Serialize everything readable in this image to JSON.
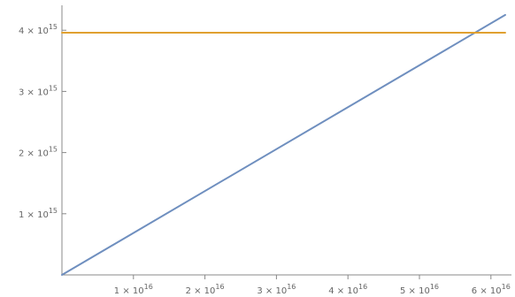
{
  "chart_data": {
    "type": "line",
    "title": "",
    "xlabel": "",
    "ylabel": "",
    "xlim": [
      0,
      6.25e+16
    ],
    "ylim": [
      0,
      4350000000000000.0
    ],
    "grid": false,
    "x_ticks": [
      {
        "value": 1e+16,
        "mant": "1",
        "exp": "16"
      },
      {
        "value": 2e+16,
        "mant": "2",
        "exp": "16"
      },
      {
        "value": 3e+16,
        "mant": "3",
        "exp": "16"
      },
      {
        "value": 4e+16,
        "mant": "4",
        "exp": "16"
      },
      {
        "value": 5e+16,
        "mant": "5",
        "exp": "16"
      },
      {
        "value": 6e+16,
        "mant": "6",
        "exp": "16"
      }
    ],
    "y_ticks": [
      {
        "value": 1000000000000000.0,
        "mant": "1",
        "exp": "15"
      },
      {
        "value": 2000000000000000.0,
        "mant": "2",
        "exp": "15"
      },
      {
        "value": 3000000000000000.0,
        "mant": "3",
        "exp": "15"
      },
      {
        "value": 4000000000000000.0,
        "mant": "4",
        "exp": "15"
      }
    ],
    "series": [
      {
        "color": "#6f8fbf",
        "x": [
          0,
          6.2e+16
        ],
        "y": [
          0,
          4250000000000000.0
        ]
      },
      {
        "color": "#e0a030",
        "x": [
          0,
          6.2e+16
        ],
        "y": [
          3960000000000000.0,
          3960000000000000.0
        ]
      }
    ]
  }
}
